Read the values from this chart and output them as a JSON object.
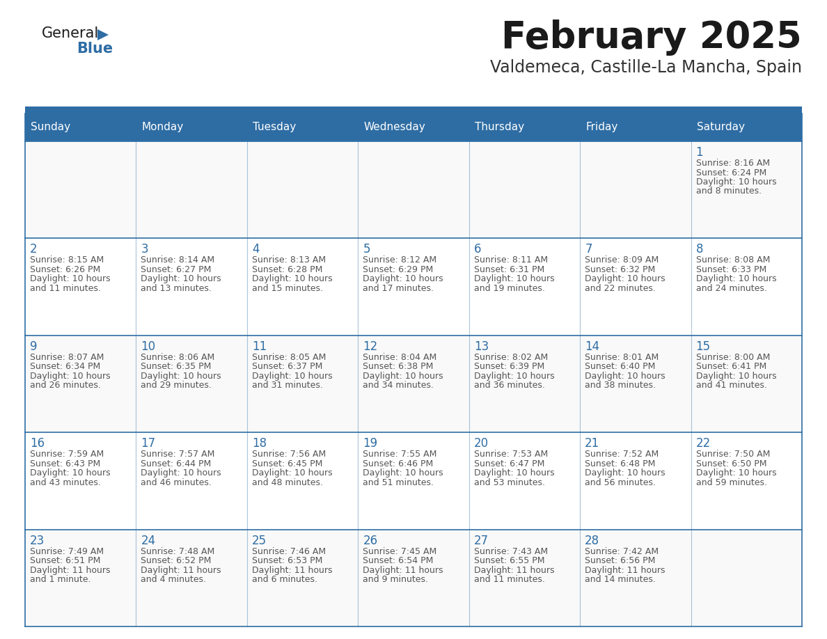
{
  "title": "February 2025",
  "subtitle": "Valdemeca, Castille-La Mancha, Spain",
  "header_bg": "#2e6da4",
  "header_text": "#ffffff",
  "day_names": [
    "Sunday",
    "Monday",
    "Tuesday",
    "Wednesday",
    "Thursday",
    "Friday",
    "Saturday"
  ],
  "bg_color": "#ffffff",
  "cell_bg": "#ffffff",
  "row_alt_bg": "#f0f0f0",
  "divider_color": "#2e6da4",
  "date_color": "#2e6da4",
  "info_color": "#555555",
  "calendar": [
    [
      null,
      null,
      null,
      null,
      null,
      null,
      {
        "day": 1,
        "sunrise": "8:16 AM",
        "sunset": "6:24 PM",
        "daylight": "10 hours and 8 minutes."
      }
    ],
    [
      {
        "day": 2,
        "sunrise": "8:15 AM",
        "sunset": "6:26 PM",
        "daylight": "10 hours and 11 minutes."
      },
      {
        "day": 3,
        "sunrise": "8:14 AM",
        "sunset": "6:27 PM",
        "daylight": "10 hours and 13 minutes."
      },
      {
        "day": 4,
        "sunrise": "8:13 AM",
        "sunset": "6:28 PM",
        "daylight": "10 hours and 15 minutes."
      },
      {
        "day": 5,
        "sunrise": "8:12 AM",
        "sunset": "6:29 PM",
        "daylight": "10 hours and 17 minutes."
      },
      {
        "day": 6,
        "sunrise": "8:11 AM",
        "sunset": "6:31 PM",
        "daylight": "10 hours and 19 minutes."
      },
      {
        "day": 7,
        "sunrise": "8:09 AM",
        "sunset": "6:32 PM",
        "daylight": "10 hours and 22 minutes."
      },
      {
        "day": 8,
        "sunrise": "8:08 AM",
        "sunset": "6:33 PM",
        "daylight": "10 hours and 24 minutes."
      }
    ],
    [
      {
        "day": 9,
        "sunrise": "8:07 AM",
        "sunset": "6:34 PM",
        "daylight": "10 hours and 26 minutes."
      },
      {
        "day": 10,
        "sunrise": "8:06 AM",
        "sunset": "6:35 PM",
        "daylight": "10 hours and 29 minutes."
      },
      {
        "day": 11,
        "sunrise": "8:05 AM",
        "sunset": "6:37 PM",
        "daylight": "10 hours and 31 minutes."
      },
      {
        "day": 12,
        "sunrise": "8:04 AM",
        "sunset": "6:38 PM",
        "daylight": "10 hours and 34 minutes."
      },
      {
        "day": 13,
        "sunrise": "8:02 AM",
        "sunset": "6:39 PM",
        "daylight": "10 hours and 36 minutes."
      },
      {
        "day": 14,
        "sunrise": "8:01 AM",
        "sunset": "6:40 PM",
        "daylight": "10 hours and 38 minutes."
      },
      {
        "day": 15,
        "sunrise": "8:00 AM",
        "sunset": "6:41 PM",
        "daylight": "10 hours and 41 minutes."
      }
    ],
    [
      {
        "day": 16,
        "sunrise": "7:59 AM",
        "sunset": "6:43 PM",
        "daylight": "10 hours and 43 minutes."
      },
      {
        "day": 17,
        "sunrise": "7:57 AM",
        "sunset": "6:44 PM",
        "daylight": "10 hours and 46 minutes."
      },
      {
        "day": 18,
        "sunrise": "7:56 AM",
        "sunset": "6:45 PM",
        "daylight": "10 hours and 48 minutes."
      },
      {
        "day": 19,
        "sunrise": "7:55 AM",
        "sunset": "6:46 PM",
        "daylight": "10 hours and 51 minutes."
      },
      {
        "day": 20,
        "sunrise": "7:53 AM",
        "sunset": "6:47 PM",
        "daylight": "10 hours and 53 minutes."
      },
      {
        "day": 21,
        "sunrise": "7:52 AM",
        "sunset": "6:48 PM",
        "daylight": "10 hours and 56 minutes."
      },
      {
        "day": 22,
        "sunrise": "7:50 AM",
        "sunset": "6:50 PM",
        "daylight": "10 hours and 59 minutes."
      }
    ],
    [
      {
        "day": 23,
        "sunrise": "7:49 AM",
        "sunset": "6:51 PM",
        "daylight": "11 hours and 1 minute."
      },
      {
        "day": 24,
        "sunrise": "7:48 AM",
        "sunset": "6:52 PM",
        "daylight": "11 hours and 4 minutes."
      },
      {
        "day": 25,
        "sunrise": "7:46 AM",
        "sunset": "6:53 PM",
        "daylight": "11 hours and 6 minutes."
      },
      {
        "day": 26,
        "sunrise": "7:45 AM",
        "sunset": "6:54 PM",
        "daylight": "11 hours and 9 minutes."
      },
      {
        "day": 27,
        "sunrise": "7:43 AM",
        "sunset": "6:55 PM",
        "daylight": "11 hours and 11 minutes."
      },
      {
        "day": 28,
        "sunrise": "7:42 AM",
        "sunset": "6:56 PM",
        "daylight": "11 hours and 14 minutes."
      },
      null
    ]
  ]
}
